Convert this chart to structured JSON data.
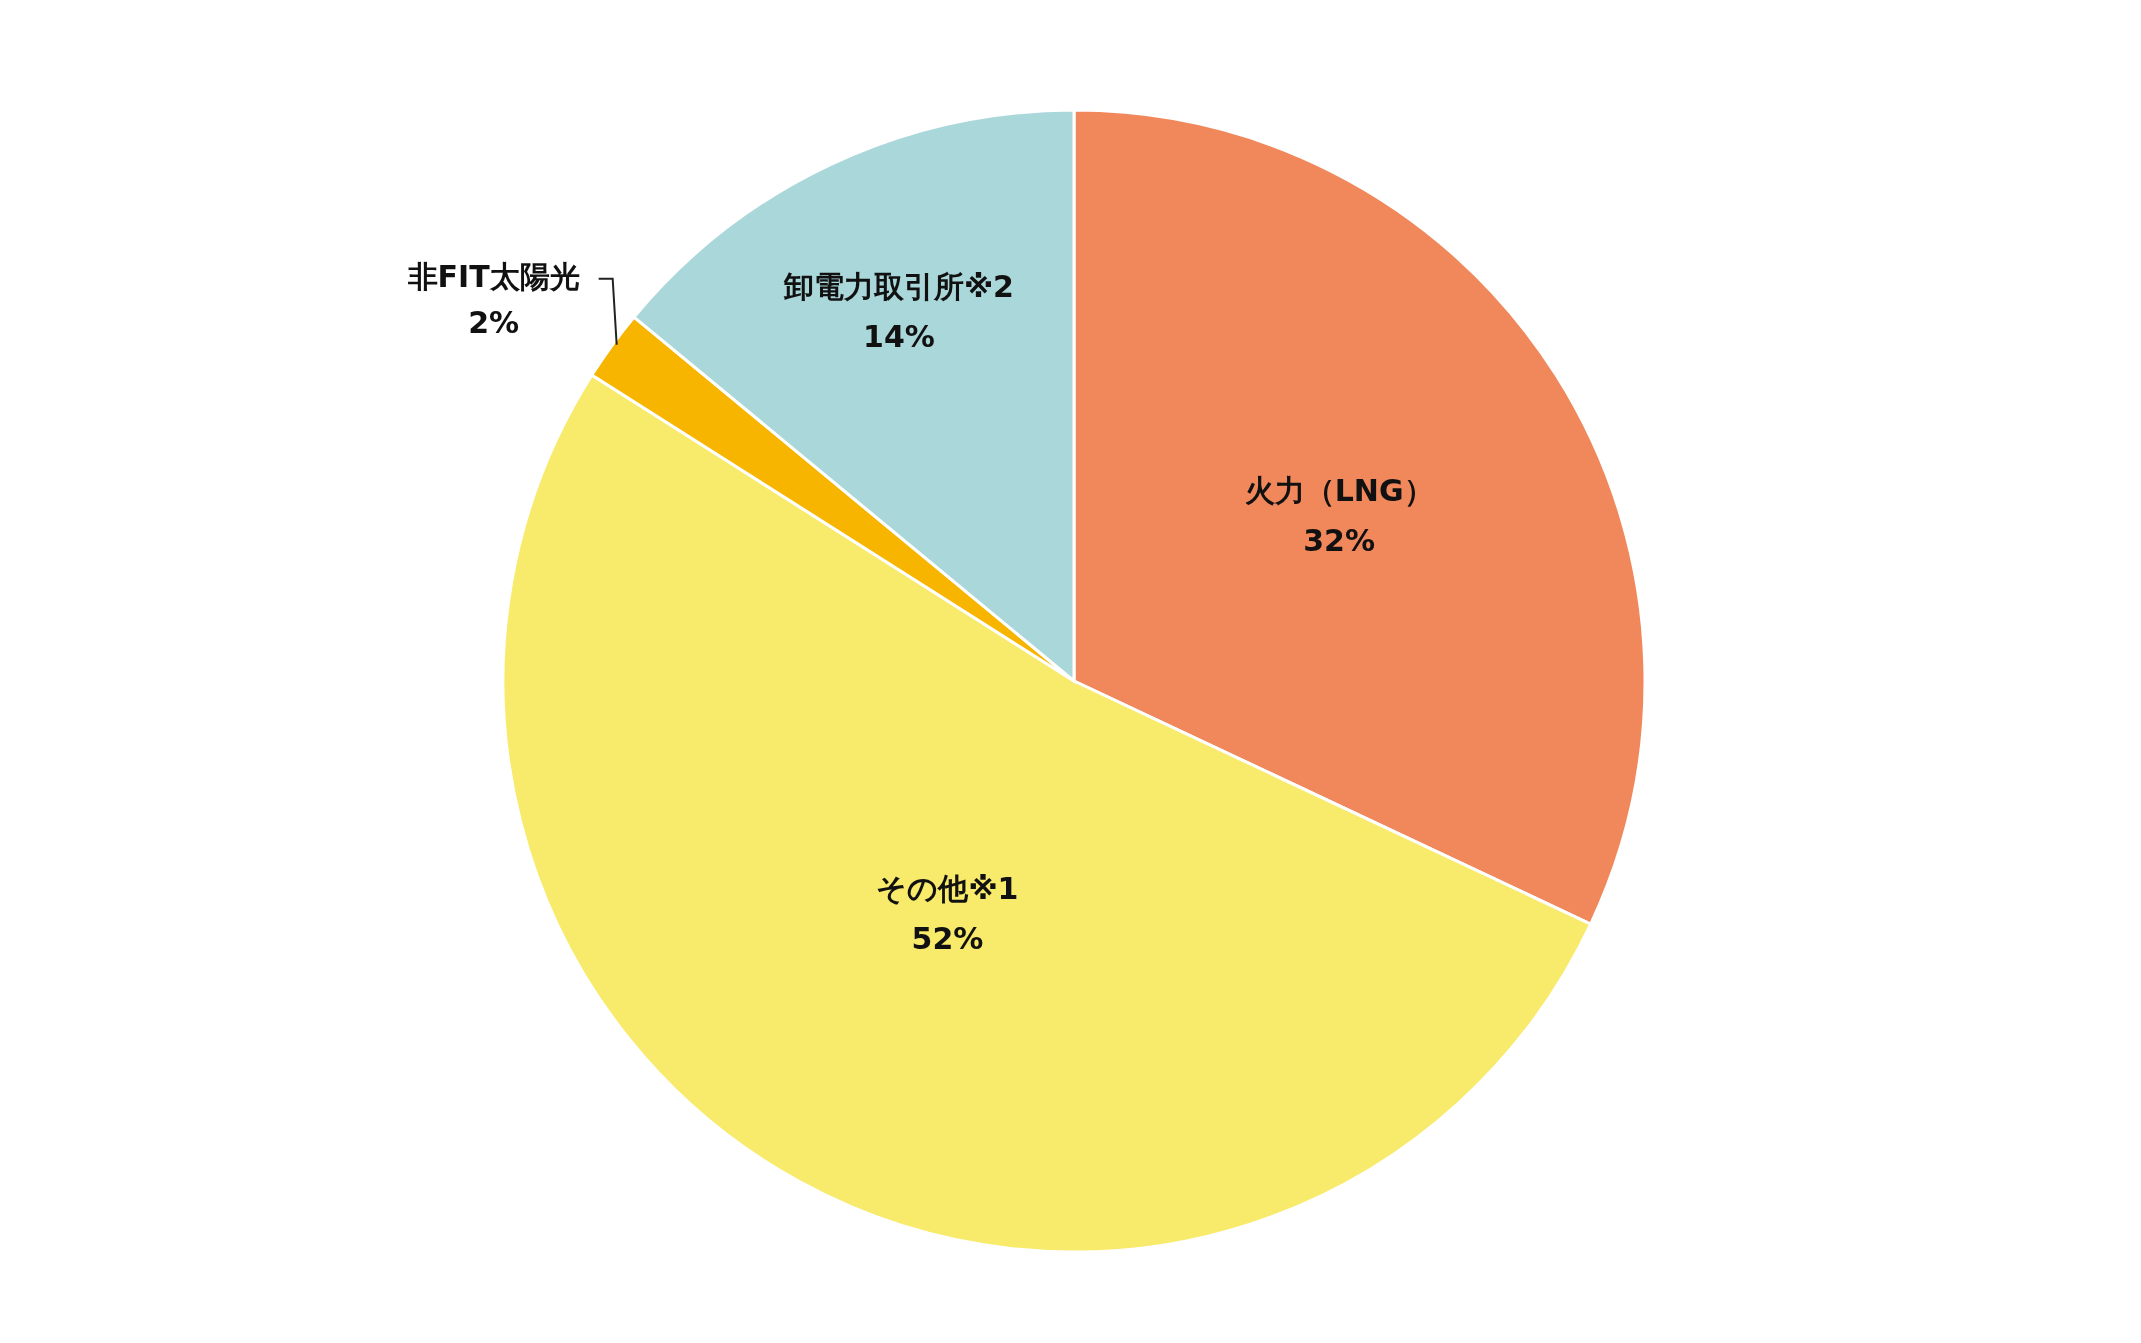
{
  "chart_data": {
    "type": "pie",
    "categories": [
      "火力（LNG）",
      "その他※1",
      "非FIT太陽光",
      "卸電力取引所※2"
    ],
    "values": [
      32,
      52,
      2,
      14
    ],
    "value_labels": [
      "32%",
      "52%",
      "2%",
      "14%"
    ],
    "colors": [
      "#f0885c",
      "#f8ea6a",
      "#f7b500",
      "#aad7da"
    ],
    "legend": false
  }
}
